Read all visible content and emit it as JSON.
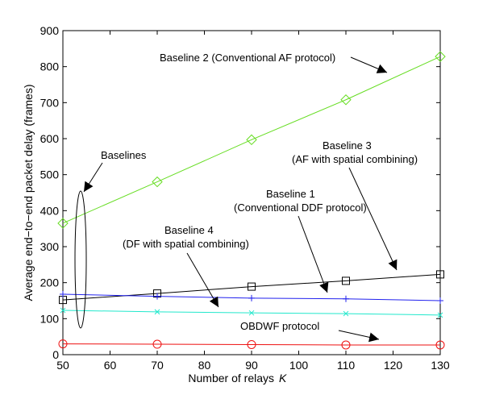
{
  "chart_data": {
    "type": "line",
    "title": "",
    "xlabel": "Number of relays",
    "xlabel_symbol": "K",
    "ylabel": "Average end−to−end packet delay (frames)",
    "xlim": [
      50,
      130
    ],
    "ylim": [
      0,
      900
    ],
    "xticks": [
      50,
      60,
      70,
      80,
      90,
      100,
      110,
      120,
      130
    ],
    "yticks": [
      0,
      100,
      200,
      300,
      400,
      500,
      600,
      700,
      800,
      900
    ],
    "grid": false,
    "series": [
      {
        "name": "Baseline 2 (Conventional AF protocol)",
        "color": "#66dd22",
        "marker": "diamond",
        "x": [
          50,
          70,
          90,
          110,
          130
        ],
        "y": [
          365,
          480,
          597,
          708,
          828
        ]
      },
      {
        "name": "Baseline 3 (AF with spatial combining)",
        "color": "#000000",
        "marker": "square",
        "x": [
          50,
          70,
          90,
          110,
          130
        ],
        "y": [
          152,
          170,
          189,
          205,
          223
        ]
      },
      {
        "name": "Baseline 1 (Conventional DDF protocol)",
        "color": "#2222ee",
        "marker": "plus",
        "x": [
          50,
          70,
          90,
          110,
          130
        ],
        "y": [
          168,
          162,
          157,
          155,
          150
        ]
      },
      {
        "name": "Baseline 4 (DF with spatial combining)",
        "color": "#22e8cc",
        "marker": "x",
        "x": [
          50,
          70,
          90,
          110,
          130
        ],
        "y": [
          123,
          119,
          116,
          114,
          110
        ]
      },
      {
        "name": "OBDWF protocol",
        "color": "#ee1111",
        "marker": "circle",
        "x": [
          50,
          70,
          90,
          110,
          130
        ],
        "y": [
          30,
          29,
          28,
          27,
          27
        ]
      }
    ],
    "annotations": [
      {
        "lines": [
          "Baseline 2 (Conventional AF protocol)"
        ]
      },
      {
        "lines": [
          "Baselines"
        ]
      },
      {
        "lines": [
          "Baseline 3",
          "(AF with spatial combining)"
        ]
      },
      {
        "lines": [
          "Baseline 1",
          "(Conventional DDF protocol)"
        ]
      },
      {
        "lines": [
          "Baseline 4",
          "(DF with spatial combining)"
        ]
      },
      {
        "lines": [
          "OBDWF protocol"
        ]
      }
    ]
  }
}
